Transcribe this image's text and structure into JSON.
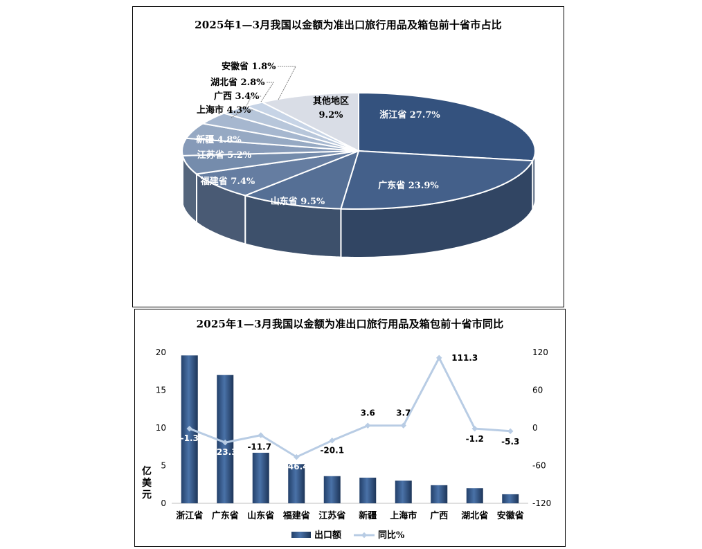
{
  "pie_chart": {
    "title": "2025年1—3月我国以金额为准出口旅行用品及箱包前十省市占比"
  },
  "combo_chart": {
    "title": "2025年1—3月我国以金额为准出口旅行用品及箱包前十省市同比",
    "y_left_label": "亿美元",
    "legend_bar": "出口额",
    "legend_line": "同比%"
  },
  "colors": {
    "bar": "#2d4f7f",
    "line": "#b8cce4",
    "slice_dark": "#34527e",
    "slice_light": "#c7d4e6",
    "other_slice": "#d9dde6"
  },
  "chart_data": [
    {
      "type": "pie",
      "title": "2025年1—3月我国以金额为准出口旅行用品及箱包前十省市占比",
      "unit": "%",
      "slices": [
        {
          "label": "浙江省",
          "value": 27.7,
          "display": "浙江省 27.7%"
        },
        {
          "label": "广东省",
          "value": 23.9,
          "display": "广东省 23.9%"
        },
        {
          "label": "山东省",
          "value": 9.5,
          "display": "山东省 9.5%"
        },
        {
          "label": "福建省",
          "value": 7.4,
          "display": "福建省 7.4%"
        },
        {
          "label": "江苏省",
          "value": 5.2,
          "display": "江苏省 5.2%"
        },
        {
          "label": "新疆",
          "value": 4.8,
          "display": "新疆 4.8%"
        },
        {
          "label": "上海市",
          "value": 4.3,
          "display": "上海市 4.3%"
        },
        {
          "label": "广西",
          "value": 3.4,
          "display": "广西 3.4%"
        },
        {
          "label": "湖北省",
          "value": 2.8,
          "display": "湖北省 2.8%"
        },
        {
          "label": "安徽省",
          "value": 1.8,
          "display": "安徽省 1.8%"
        },
        {
          "label": "其他地区",
          "value": 9.2,
          "display": "9.2%"
        }
      ]
    },
    {
      "type": "bar",
      "title": "2025年1—3月我国以金额为准出口旅行用品及箱包前十省市同比",
      "categories": [
        "浙江省",
        "广东省",
        "山东省",
        "福建省",
        "江苏省",
        "新疆",
        "上海市",
        "广西",
        "湖北省",
        "安徽省"
      ],
      "series": [
        {
          "name": "出口额",
          "kind": "bar",
          "axis": "left",
          "values": [
            19.6,
            17.0,
            6.7,
            5.2,
            3.6,
            3.4,
            3.0,
            2.4,
            2.0,
            1.2
          ]
        },
        {
          "name": "同比%",
          "kind": "line",
          "axis": "right",
          "values": [
            -1.3,
            -23.3,
            -11.7,
            -46.4,
            -20.1,
            3.6,
            3.7,
            111.3,
            -1.2,
            -5.3
          ],
          "labels": [
            "-1.3",
            "-23.3",
            "-11.7",
            "-46.4",
            "-20.1",
            "3.6",
            "3.7",
            "111.3",
            "-1.2",
            "-5.3"
          ]
        }
      ],
      "ylabel": "亿美元",
      "ylim": [
        0,
        20
      ],
      "yticks": [
        "0",
        "5",
        "10",
        "15",
        "20"
      ],
      "y2lim": [
        -120,
        120
      ],
      "y2ticks": [
        "-120",
        "-60",
        "0",
        "60",
        "120"
      ],
      "legend_position": "bottom",
      "grid": false
    }
  ]
}
